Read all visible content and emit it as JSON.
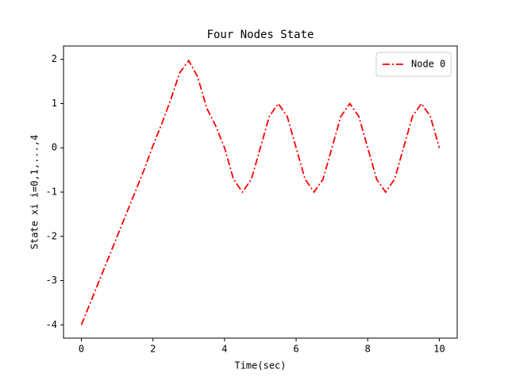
{
  "chart_data": {
    "type": "line",
    "title": "Four Nodes State",
    "xlabel": "Time(sec)",
    "ylabel": "State xi i=0,1,...,4",
    "x": [
      0,
      0.25,
      0.5,
      0.75,
      1,
      1.25,
      1.5,
      1.75,
      2,
      2.25,
      2.5,
      2.75,
      3,
      3.25,
      3.5,
      3.75,
      4,
      4.25,
      4.5,
      4.75,
      5,
      5.25,
      5.5,
      5.75,
      6,
      6.25,
      6.5,
      6.75,
      7,
      7.25,
      7.5,
      7.75,
      8,
      8.25,
      8.5,
      8.75,
      9,
      9.25,
      9.5,
      9.75,
      10
    ],
    "series": [
      {
        "name": "Node 0",
        "color": "#ff0000",
        "values": [
          -4,
          -3.5,
          -3,
          -2.5,
          -2,
          -1.5,
          -1,
          -0.5,
          0.05,
          0.55,
          1.1,
          1.7,
          1.97,
          1.6,
          0.9,
          0.5,
          0,
          -0.71,
          -1,
          -0.71,
          0,
          0.71,
          1,
          0.71,
          0,
          -0.71,
          -1,
          -0.71,
          0,
          0.71,
          1,
          0.71,
          0,
          -0.71,
          -1,
          -0.71,
          0,
          0.71,
          1,
          0.71,
          0
        ]
      }
    ],
    "xlim": [
      -0.5,
      10.5
    ],
    "ylim": [
      -4.3,
      2.3
    ],
    "xticks": [
      0,
      2,
      4,
      6,
      8,
      10
    ],
    "yticks": [
      -4,
      -3,
      -2,
      -1,
      0,
      1,
      2
    ],
    "legend": "upper right",
    "grid": false
  }
}
